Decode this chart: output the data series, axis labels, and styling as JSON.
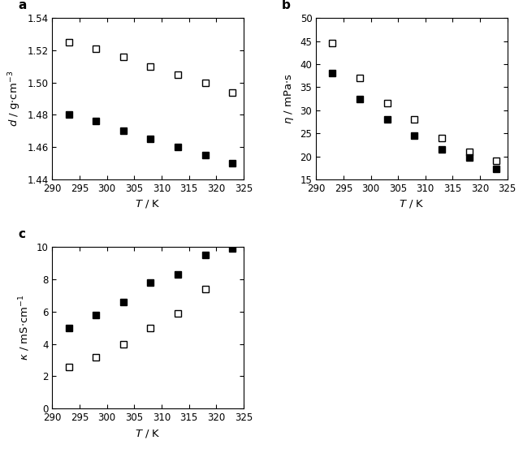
{
  "panel_a": {
    "label": "a",
    "xlim": [
      290,
      325
    ],
    "ylim": [
      1.44,
      1.54
    ],
    "yticks": [
      1.44,
      1.46,
      1.48,
      1.5,
      1.52,
      1.54
    ],
    "xticks": [
      290,
      295,
      300,
      305,
      310,
      315,
      320,
      325
    ],
    "open_x": [
      293,
      298,
      303,
      308,
      313,
      318,
      323
    ],
    "open_y": [
      1.525,
      1.521,
      1.516,
      1.51,
      1.505,
      1.5,
      1.494
    ],
    "filled_x": [
      293,
      298,
      303,
      308,
      313,
      318,
      323
    ],
    "filled_y": [
      1.48,
      1.476,
      1.47,
      1.465,
      1.46,
      1.455,
      1.45
    ],
    "ylabel": "$d$ / g$\\cdot$cm$^{-3}$",
    "xlabel": "$T$ / K"
  },
  "panel_b": {
    "label": "b",
    "xlim": [
      290,
      325
    ],
    "ylim": [
      15,
      50
    ],
    "yticks": [
      15,
      20,
      25,
      30,
      35,
      40,
      45,
      50
    ],
    "xticks": [
      290,
      295,
      300,
      305,
      310,
      315,
      320,
      325
    ],
    "open_x": [
      293,
      298,
      303,
      308,
      313,
      318,
      323
    ],
    "open_y": [
      44.5,
      37.0,
      31.5,
      28.0,
      24.0,
      21.0,
      19.0
    ],
    "filled_x": [
      293,
      298,
      303,
      308,
      313,
      318,
      323
    ],
    "filled_y": [
      38.0,
      32.5,
      28.0,
      24.5,
      21.5,
      19.7,
      17.3
    ],
    "ylabel": "$\\eta$ / mPa$\\cdot$s",
    "xlabel": "$T$ / K"
  },
  "panel_c": {
    "label": "c",
    "xlim": [
      290,
      325
    ],
    "ylim": [
      0,
      10
    ],
    "yticks": [
      0,
      2,
      4,
      6,
      8,
      10
    ],
    "xticks": [
      290,
      295,
      300,
      305,
      310,
      315,
      320,
      325
    ],
    "open_x": [
      293,
      298,
      303,
      308,
      313,
      318
    ],
    "open_y": [
      2.6,
      3.2,
      4.0,
      5.0,
      5.9,
      7.4
    ],
    "filled_x": [
      293,
      298,
      303,
      308,
      313,
      318,
      323
    ],
    "filled_y": [
      5.0,
      5.8,
      6.6,
      7.8,
      8.3,
      9.5,
      9.9
    ],
    "ylabel": "$\\kappa$ / mS$\\cdot$cm$^{-1}$",
    "xlabel": "$T$ / K"
  },
  "marker_size": 5.5,
  "marker_edge_width": 1.0,
  "tick_fontsize": 8.5,
  "label_fontsize": 9.5,
  "panel_label_fontsize": 11
}
